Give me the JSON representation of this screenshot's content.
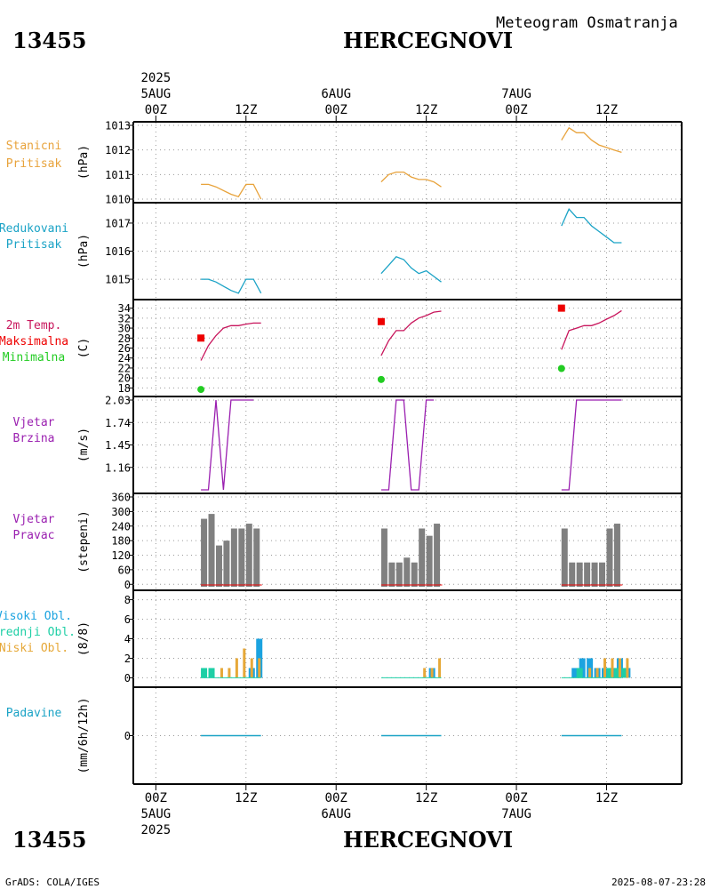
{
  "header": {
    "station_id": "13455",
    "station_name": "HERCEGNOVI",
    "title": "Meteogram Osmatranja",
    "footer_left": "GrADS: COLA/IGES",
    "footer_right": "2025-08-07-23:28"
  },
  "time_axis": {
    "year": "2025",
    "ticks": [
      {
        "label": "00Z",
        "date": "5AUG",
        "hour": 0
      },
      {
        "label": "12Z",
        "date": "",
        "hour": 12
      },
      {
        "label": "00Z",
        "date": "6AUG",
        "hour": 24
      },
      {
        "label": "12Z",
        "date": "",
        "hour": 36
      },
      {
        "label": "00Z",
        "date": "7AUG",
        "hour": 48
      },
      {
        "label": "12Z",
        "date": "",
        "hour": 60
      }
    ],
    "range_hours": [
      -3,
      70
    ]
  },
  "colors": {
    "pressure": "#e8a33c",
    "reduced": "#1ba3c6",
    "tmp": "#c8155c",
    "tmax": "#ee0000",
    "tmin": "#22cc22",
    "wind": "#9a1fb0",
    "dir": "#808080",
    "cloud_high": "#1ba3e0",
    "cloud_mid": "#1ecfa6",
    "cloud_low": "#e6a838",
    "precip": "#1ba3c6"
  },
  "chart_data": [
    {
      "type": "line",
      "panel": "stanicni",
      "labels": [
        "Stanicni",
        "Pritisak"
      ],
      "ylabel": "(hPa)",
      "ylim": [
        1010,
        1013
      ],
      "yticks": [
        1010,
        1011,
        1012,
        1013
      ],
      "series": [
        {
          "name": "Stanicni Pritisak",
          "points": [
            [
              6,
              1010.6
            ],
            [
              7,
              1010.6
            ],
            [
              8,
              1010.5
            ],
            [
              10,
              1010.2
            ],
            [
              11,
              1010.1
            ],
            [
              12,
              1010.6
            ],
            [
              13,
              1010.6
            ],
            [
              14,
              1010.0
            ]
          ]
        },
        {
          "name": "Stanicni Pritisak",
          "points": [
            [
              30,
              1010.7
            ],
            [
              31,
              1011.0
            ],
            [
              32,
              1011.1
            ],
            [
              33,
              1011.1
            ],
            [
              34,
              1010.9
            ],
            [
              35,
              1010.8
            ],
            [
              36,
              1010.8
            ],
            [
              37,
              1010.7
            ],
            [
              38,
              1010.5
            ]
          ]
        },
        {
          "name": "Stanicni Pritisak",
          "points": [
            [
              54,
              1012.4
            ],
            [
              55,
              1012.9
            ],
            [
              56,
              1012.7
            ],
            [
              57,
              1012.7
            ],
            [
              58,
              1012.4
            ],
            [
              59,
              1012.2
            ],
            [
              60,
              1012.1
            ],
            [
              61,
              1012.0
            ],
            [
              62,
              1011.9
            ]
          ]
        }
      ]
    },
    {
      "type": "line",
      "panel": "redukovani",
      "labels": [
        "Redukovani",
        "Pritisak"
      ],
      "ylabel": "(hPa)",
      "ylim": [
        1014.4,
        1017.6
      ],
      "yticks": [
        1015,
        1016,
        1017
      ],
      "series": [
        {
          "name": "Redukovani Pritisak",
          "points": [
            [
              6,
              1015.0
            ],
            [
              7,
              1015.0
            ],
            [
              8,
              1014.9
            ],
            [
              10,
              1014.6
            ],
            [
              11,
              1014.5
            ],
            [
              12,
              1015.0
            ],
            [
              13,
              1015.0
            ],
            [
              14,
              1014.5
            ]
          ]
        },
        {
          "name": "Redukovani Pritisak",
          "points": [
            [
              30,
              1015.2
            ],
            [
              31,
              1015.5
            ],
            [
              32,
              1015.8
            ],
            [
              33,
              1015.7
            ],
            [
              34,
              1015.4
            ],
            [
              35,
              1015.2
            ],
            [
              36,
              1015.3
            ],
            [
              37,
              1015.1
            ],
            [
              38,
              1014.9
            ]
          ]
        },
        {
          "name": "Redukovani Pritisak",
          "points": [
            [
              54,
              1016.9
            ],
            [
              55,
              1017.5
            ],
            [
              56,
              1017.2
            ],
            [
              57,
              1017.2
            ],
            [
              58,
              1016.9
            ],
            [
              59,
              1016.7
            ],
            [
              60,
              1016.5
            ],
            [
              61,
              1016.3
            ],
            [
              62,
              1016.3
            ]
          ]
        }
      ]
    },
    {
      "type": "line",
      "panel": "temperatura",
      "labels": [
        "2m Temp.",
        "Maksimalna",
        "Minimalna"
      ],
      "ylabel": "(C)",
      "ylim": [
        17,
        35
      ],
      "yticks": [
        18,
        20,
        22,
        24,
        26,
        28,
        30,
        32,
        34
      ],
      "series": [
        {
          "name": "2m Temp.",
          "points": [
            [
              6,
              23.5
            ],
            [
              7,
              26.5
            ],
            [
              8,
              28.5
            ],
            [
              9,
              30.0
            ],
            [
              10,
              30.5
            ],
            [
              11,
              30.5
            ],
            [
              12,
              30.8
            ],
            [
              13,
              31.0
            ],
            [
              14,
              31.0
            ]
          ]
        },
        {
          "name": "2m Temp.",
          "points": [
            [
              30,
              24.5
            ],
            [
              31,
              27.5
            ],
            [
              32,
              29.5
            ],
            [
              33,
              29.5
            ],
            [
              34,
              31.0
            ],
            [
              35,
              32.0
            ],
            [
              36,
              32.5
            ],
            [
              37,
              33.2
            ],
            [
              38,
              33.4
            ]
          ]
        },
        {
          "name": "2m Temp.",
          "points": [
            [
              54,
              25.7
            ],
            [
              55,
              29.5
            ],
            [
              56,
              30.0
            ],
            [
              57,
              30.5
            ],
            [
              58,
              30.5
            ],
            [
              59,
              31.0
            ],
            [
              60,
              31.8
            ],
            [
              61,
              32.5
            ],
            [
              62,
              33.5
            ]
          ]
        }
      ],
      "max": [
        [
          6,
          28.0
        ],
        [
          30,
          31.3
        ],
        [
          54,
          34.0
        ]
      ],
      "min": [
        [
          6,
          17.7
        ],
        [
          30,
          19.7
        ],
        [
          54,
          21.9
        ]
      ]
    },
    {
      "type": "line",
      "panel": "vjetar_brzina",
      "labels": [
        "Vjetar",
        "Brzina"
      ],
      "ylabel": "(m/s)",
      "ylim": [
        0.87,
        2.03
      ],
      "yticks": [
        1.16,
        1.45,
        1.74,
        2.03
      ],
      "ytick_labels": [
        "1.16",
        "1.45",
        "1.74",
        "2.03"
      ],
      "series": [
        {
          "name": "Vjetar Brzina",
          "points": [
            [
              6,
              0.87
            ],
            [
              7,
              0.87
            ],
            [
              8,
              2.03
            ],
            [
              9,
              0.87
            ],
            [
              10,
              2.03
            ],
            [
              11,
              2.03
            ],
            [
              12,
              2.03
            ],
            [
              13,
              2.03
            ]
          ]
        },
        {
          "name": "Vjetar Brzina",
          "points": [
            [
              30,
              0.87
            ],
            [
              31,
              0.87
            ],
            [
              32,
              2.03
            ],
            [
              33,
              2.03
            ],
            [
              34,
              0.87
            ],
            [
              35,
              0.87
            ],
            [
              36,
              2.03
            ],
            [
              37,
              2.03
            ]
          ]
        },
        {
          "name": "Vjetar Brzina",
          "points": [
            [
              54,
              0.87
            ],
            [
              55,
              0.87
            ],
            [
              56,
              2.03
            ],
            [
              57,
              2.03
            ],
            [
              58,
              2.03
            ],
            [
              59,
              2.03
            ],
            [
              60,
              2.03
            ],
            [
              61,
              2.03
            ],
            [
              62,
              2.03
            ]
          ]
        }
      ]
    },
    {
      "type": "bar",
      "panel": "vjetar_pravac",
      "labels": [
        "Vjetar",
        "Pravac"
      ],
      "ylabel": "(stepeni)",
      "ylim": [
        -10,
        360
      ],
      "yticks": [
        0,
        60,
        120,
        180,
        240,
        300,
        360
      ],
      "bars": [
        [
          6,
          270
        ],
        [
          7,
          290
        ],
        [
          8,
          160
        ],
        [
          9,
          180
        ],
        [
          10,
          230
        ],
        [
          11,
          230
        ],
        [
          12,
          250
        ],
        [
          13,
          230
        ],
        [
          30,
          230
        ],
        [
          31,
          90
        ],
        [
          32,
          90
        ],
        [
          33,
          110
        ],
        [
          34,
          90
        ],
        [
          35,
          230
        ],
        [
          36,
          200
        ],
        [
          37,
          250
        ],
        [
          54,
          230
        ],
        [
          55,
          90
        ],
        [
          56,
          90
        ],
        [
          57,
          90
        ],
        [
          58,
          90
        ],
        [
          59,
          90
        ],
        [
          60,
          230
        ],
        [
          61,
          250
        ]
      ]
    },
    {
      "type": "bar",
      "panel": "oblacnost",
      "labels": [
        "Visoki Obl.",
        "Srednji Obl.",
        "Niski Obl."
      ],
      "ylabel": "(8/8)",
      "ylim": [
        -0.6,
        8.6
      ],
      "yticks": [
        0,
        2,
        4,
        6,
        8
      ],
      "series": [
        {
          "name": "Visoki Obl.",
          "bars": [
            [
              12,
              1
            ],
            [
              13,
              4
            ],
            [
              36,
              1
            ],
            [
              55,
              1
            ],
            [
              56,
              2
            ],
            [
              57,
              2
            ],
            [
              58,
              1
            ],
            [
              59,
              1
            ],
            [
              60,
              1
            ],
            [
              61,
              2
            ],
            [
              62,
              1
            ]
          ]
        },
        {
          "name": "Srednji Obl.",
          "bars": [
            [
              6,
              1
            ],
            [
              7,
              1
            ],
            [
              56,
              1
            ],
            [
              60,
              1
            ],
            [
              61,
              1
            ],
            [
              62,
              1
            ]
          ]
        },
        {
          "name": "Niski Obl.",
          "bars": [
            [
              8,
              1
            ],
            [
              9,
              1
            ],
            [
              10,
              2
            ],
            [
              11,
              3
            ],
            [
              12,
              2
            ],
            [
              13,
              2
            ],
            [
              35,
              1
            ],
            [
              36,
              1
            ],
            [
              37,
              2
            ],
            [
              57,
              1
            ],
            [
              58,
              1
            ],
            [
              59,
              2
            ],
            [
              60,
              2
            ],
            [
              61,
              2
            ],
            [
              62,
              2
            ]
          ]
        }
      ]
    },
    {
      "type": "bar",
      "panel": "padavine",
      "labels": [
        "Padavine"
      ],
      "ylabel": "(mm/6h/12h)",
      "ylim": [
        -1,
        1
      ],
      "yticks": [
        0
      ],
      "values": [
        [
          6,
          0
        ],
        [
          14,
          0
        ],
        [
          30,
          0
        ],
        [
          38,
          0
        ],
        [
          54,
          0
        ],
        [
          62,
          0
        ]
      ]
    }
  ]
}
